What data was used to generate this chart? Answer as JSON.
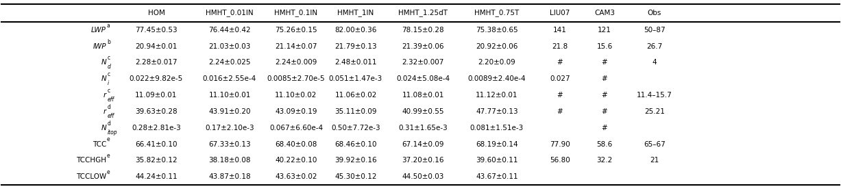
{
  "col_headers": [
    "HOM",
    "HMHT_0.01IN",
    "HMHT_0.1IN",
    "HMHT_1IN",
    "HMHT_1.25dT",
    "HMHT_0.75T",
    "LIU07",
    "CAM3",
    "Obs"
  ],
  "rows": [
    {
      "label_main": "LWP",
      "label_sub": "",
      "label_super": "a",
      "label_italic": true,
      "values": [
        "77.45±0.53",
        "76.44±0.42",
        "75.26±0.15",
        "82.00±0.36",
        "78.15±0.28",
        "75.38±0.65",
        "141",
        "121",
        "50–87"
      ]
    },
    {
      "label_main": "IWP",
      "label_sub": "",
      "label_super": "b",
      "label_italic": true,
      "values": [
        "20.94±0.01",
        "21.03±0.03",
        "21.14±0.07",
        "21.79±0.13",
        "21.39±0.06",
        "20.92±0.06",
        "21.8",
        "15.6",
        "26.7"
      ]
    },
    {
      "label_main": "N",
      "label_sub": "d",
      "label_super": "c",
      "label_italic": true,
      "values": [
        "2.28±0.017",
        "2.24±0.025",
        "2.24±0.009",
        "2.48±0.011",
        "2.32±0.007",
        "2.20±0.09",
        "#",
        "#",
        "4"
      ]
    },
    {
      "label_main": "N",
      "label_sub": "i",
      "label_super": "c",
      "label_italic": true,
      "values": [
        "0.022±9.82e-5",
        "0.016±2.55e-4",
        "0.0085±2.70e-5",
        "0.051±1.47e-3",
        "0.024±5.08e-4",
        "0.0089±2.40e-4",
        "0.027",
        "#",
        ""
      ]
    },
    {
      "label_main": "r",
      "label_sub": "eff",
      "label_super": "c",
      "label_italic": true,
      "values": [
        "11.09±0.01",
        "11.10±0.01",
        "11.10±0.02",
        "11.06±0.02",
        "11.08±0.01",
        "11.12±0.01",
        "#",
        "#",
        "11.4–15.7"
      ]
    },
    {
      "label_main": "r",
      "label_sub": "eff",
      "label_super": "d",
      "label_italic": true,
      "values": [
        "39.63±0.28",
        "43.91±0.20",
        "43.09±0.19",
        "35.11±0.09",
        "40.99±0.55",
        "47.77±0.13",
        "#",
        "#",
        "25.21"
      ]
    },
    {
      "label_main": "N",
      "label_sub": "itop",
      "label_super": "d",
      "label_italic": true,
      "values": [
        "0.28±2.81e-3",
        "0.17±2.10e-3",
        "0.067±6.60e-4",
        "0.50±7.72e-3",
        "0.31±1.65e-3",
        "0.081±1.51e-3",
        "",
        "#",
        ""
      ]
    },
    {
      "label_main": "TCC",
      "label_sub": "",
      "label_super": "e",
      "label_italic": false,
      "values": [
        "66.41±0.10",
        "67.33±0.13",
        "68.40±0.08",
        "68.46±0.10",
        "67.14±0.09",
        "68.19±0.14",
        "77.90",
        "58.6",
        "65–67"
      ]
    },
    {
      "label_main": "TCCHGH",
      "label_sub": "",
      "label_super": "e",
      "label_italic": false,
      "values": [
        "35.82±0.12",
        "38.18±0.08",
        "40.22±0.10",
        "39.92±0.16",
        "37.20±0.16",
        "39.60±0.11",
        "56.80",
        "32.2",
        "21"
      ]
    },
    {
      "label_main": "TCCLOW",
      "label_sub": "",
      "label_super": "e",
      "label_italic": false,
      "values": [
        "44.24±0.11",
        "43.87±0.18",
        "43.63±0.02",
        "45.30±0.12",
        "44.50±0.03",
        "43.67±0.11",
        "",
        "",
        ""
      ]
    }
  ],
  "bg_color": "#ffffff",
  "line_color": "#000000",
  "text_color": "#000000"
}
